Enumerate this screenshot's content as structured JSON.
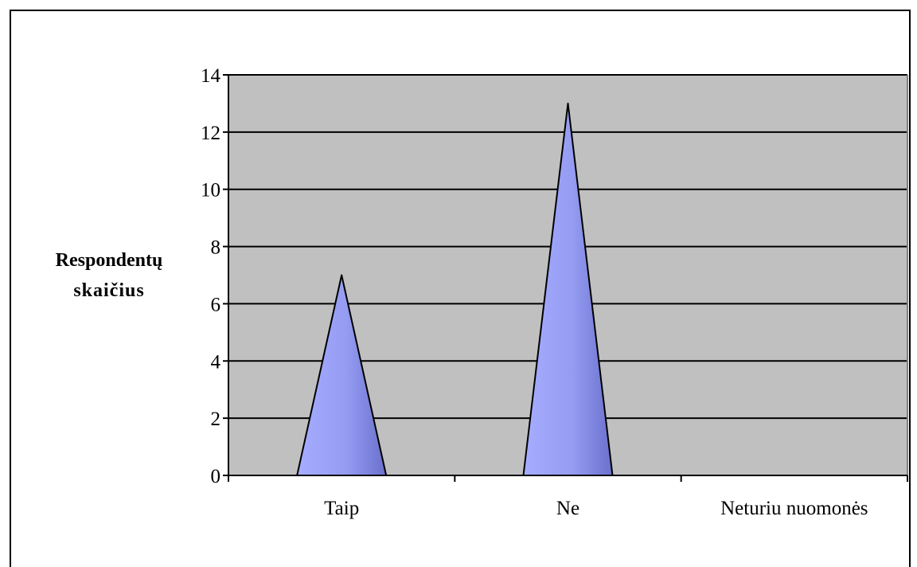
{
  "chart_data": {
    "type": "bar",
    "bar_shape": "cone",
    "categories": [
      "Taip",
      "Ne",
      "Neturiu nuomonės"
    ],
    "values": [
      7,
      13,
      0
    ],
    "ylabel_lines": [
      "Respondentų",
      "skaičius"
    ],
    "xlabel": "",
    "title": "",
    "ylim": [
      0,
      14
    ],
    "yticks": [
      0,
      2,
      4,
      6,
      8,
      10,
      12,
      14
    ],
    "grid": true,
    "legend": "none",
    "colors": {
      "plot_background": "#c0c0c0",
      "bar_light": "#a6adff",
      "bar_dark": "#6a70cc",
      "bar_outline": "#000000",
      "gridline": "#000000"
    }
  }
}
